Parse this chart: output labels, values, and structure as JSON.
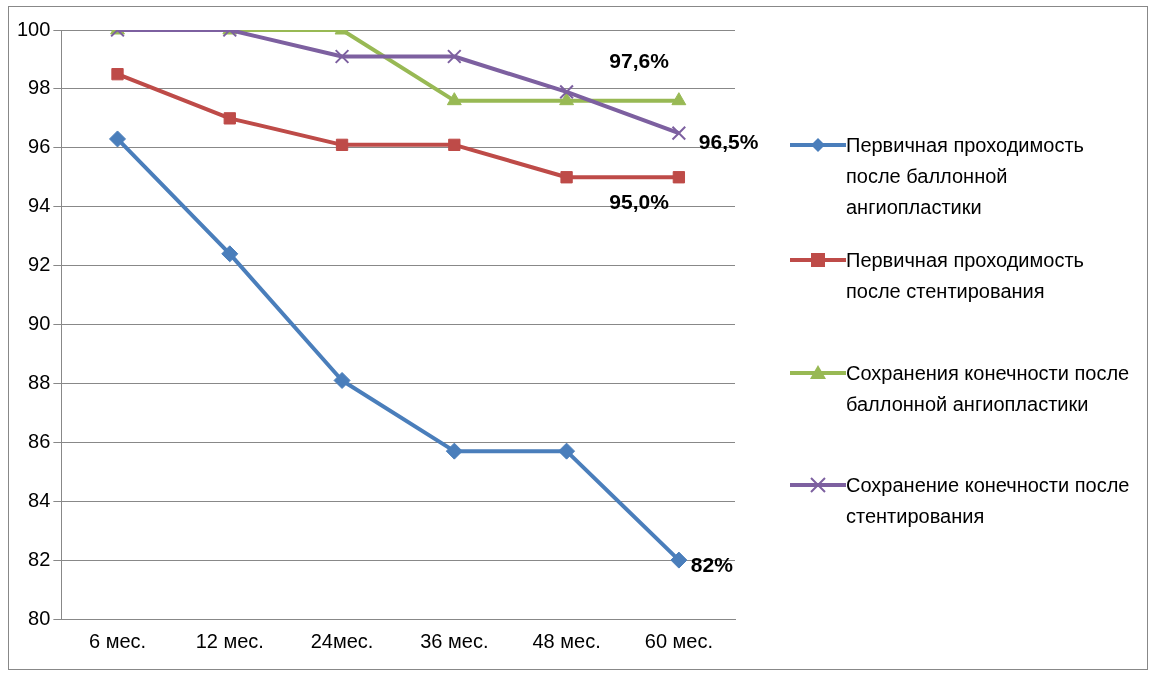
{
  "chart_data": {
    "type": "line",
    "categories": [
      "6 мес.",
      "12 мес.",
      "24мес.",
      "36 мес.",
      "48 мес.",
      "60 мес."
    ],
    "ylim": [
      80,
      100
    ],
    "yticks": [
      80,
      82,
      84,
      86,
      88,
      90,
      92,
      94,
      96,
      98,
      100
    ],
    "grid": "y",
    "legend": "right",
    "line_style": "solid",
    "series": [
      {
        "name": "Первичная проходимость после баллонной ангиопластики",
        "color": "#4a7ebb",
        "marker": "diamond",
        "values": [
          96.3,
          92.4,
          88.1,
          85.7,
          85.7,
          82.0
        ]
      },
      {
        "name": "Первичная проходимость после стентирования",
        "color": "#be4b48",
        "marker": "square",
        "values": [
          98.5,
          97.0,
          96.1,
          96.1,
          95.0,
          95.0
        ]
      },
      {
        "name": "Сохранения конечности после баллонной ангиопластики",
        "color": "#98b954",
        "marker": "triangle",
        "values": [
          100,
          100,
          100,
          97.6,
          97.6,
          97.6
        ]
      },
      {
        "name": "Сохранение конечности после стентирования",
        "color": "#7d60a0",
        "marker": "cross",
        "values": [
          100,
          100,
          99.1,
          99.1,
          97.9,
          96.5
        ]
      }
    ],
    "annotations": [
      {
        "text": "82%",
        "x": "60 мес.",
        "y": 82.0
      },
      {
        "text": "95,0%",
        "x": "60 мес.",
        "y": 95.0
      },
      {
        "text": "97,6%",
        "x": "60 мес.",
        "y": 97.6
      },
      {
        "text": "96,5%",
        "x": "60 мес.",
        "y": 96.5
      }
    ]
  }
}
